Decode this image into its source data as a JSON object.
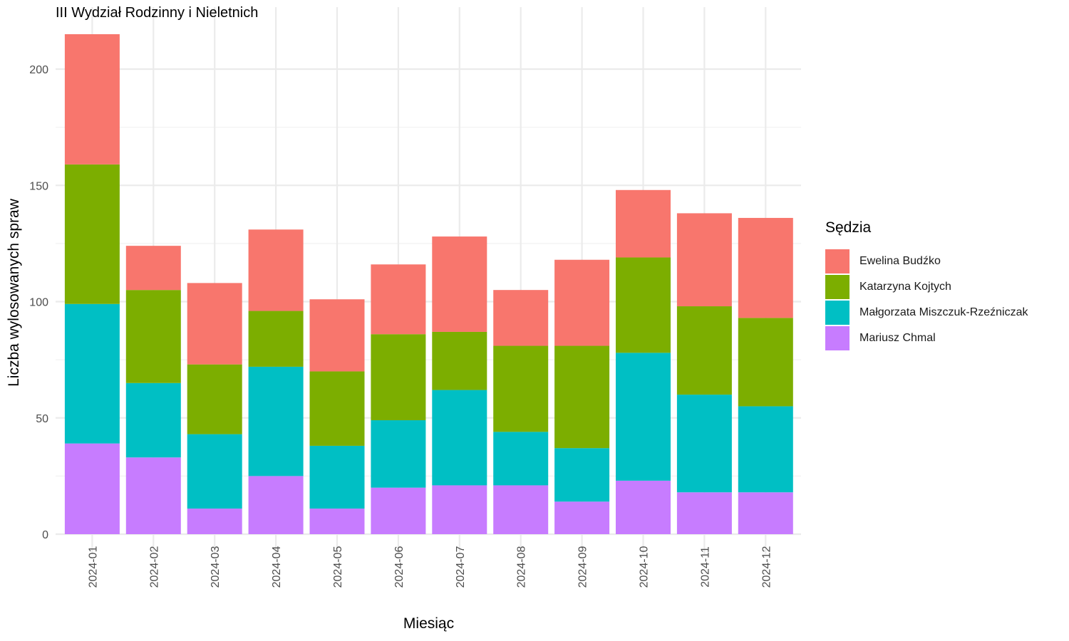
{
  "chart_data": {
    "type": "bar",
    "stacked": true,
    "title": "III Wydział Rodzinny i Nieletnich",
    "xlabel": "Miesiąc",
    "ylabel": "Liczba wylosowanych spraw",
    "legend_title": "Sędzia",
    "legend_position": "right",
    "grid": true,
    "ylim": [
      0,
      220
    ],
    "yticks": [
      0,
      50,
      100,
      150,
      200
    ],
    "categories": [
      "2024-01",
      "2024-02",
      "2024-03",
      "2024-04",
      "2024-05",
      "2024-06",
      "2024-07",
      "2024-08",
      "2024-09",
      "2024-10",
      "2024-11",
      "2024-12"
    ],
    "series": [
      {
        "name": "Mariusz Chmal",
        "color": "#C77CFF",
        "values": [
          39,
          33,
          11,
          25,
          11,
          20,
          21,
          21,
          14,
          23,
          18,
          18
        ]
      },
      {
        "name": "Małgorzata Miszczuk-Rzeźniczak",
        "color": "#00BFC4",
        "values": [
          60,
          32,
          32,
          47,
          27,
          29,
          41,
          23,
          23,
          55,
          42,
          37
        ]
      },
      {
        "name": "Katarzyna Kojtych",
        "color": "#7CAE00",
        "values": [
          60,
          40,
          30,
          24,
          32,
          37,
          25,
          37,
          44,
          41,
          38,
          38
        ]
      },
      {
        "name": "Ewelina Budźko",
        "color": "#F8766D",
        "values": [
          56,
          19,
          35,
          35,
          31,
          30,
          41,
          24,
          37,
          29,
          40,
          43
        ]
      }
    ],
    "legend_order": [
      "Ewelina Budźko",
      "Katarzyna Kojtych",
      "Małgorzata Miszczuk-Rzeźniczak",
      "Mariusz Chmal"
    ]
  }
}
